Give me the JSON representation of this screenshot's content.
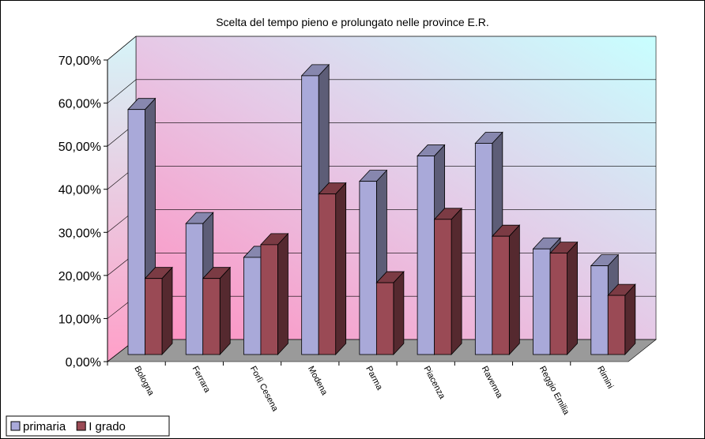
{
  "chart_data": {
    "type": "bar3d",
    "title": "Scelta del tempo pieno e prolungato nelle province E.R.",
    "categories": [
      "Bologna",
      "Ferrara",
      "Forlì Cesena",
      "Modena",
      "Parma",
      "Piacenza",
      "Ravenna",
      "Reggio Emilia",
      "Rimini"
    ],
    "series": [
      {
        "name": "primaria",
        "color": "#a9a9d9",
        "values": [
          58,
          31,
          23,
          66,
          41,
          47,
          50,
          25,
          21
        ]
      },
      {
        "name": "I grado",
        "color": "#9a4a55",
        "values": [
          18,
          18,
          26,
          38,
          17,
          32,
          28,
          24,
          14
        ]
      }
    ],
    "ylim": [
      0,
      70
    ],
    "yticks": [
      {
        "value": 0,
        "label": "0,00%"
      },
      {
        "value": 10,
        "label": "10,00%"
      },
      {
        "value": 20,
        "label": "20,00%"
      },
      {
        "value": 30,
        "label": "30,00%"
      },
      {
        "value": 40,
        "label": "40,00%"
      },
      {
        "value": 50,
        "label": "50,00%"
      },
      {
        "value": 60,
        "label": "60,00%"
      },
      {
        "value": 70,
        "label": "70,00%"
      }
    ],
    "grid": true,
    "legend": "bottom-left"
  }
}
